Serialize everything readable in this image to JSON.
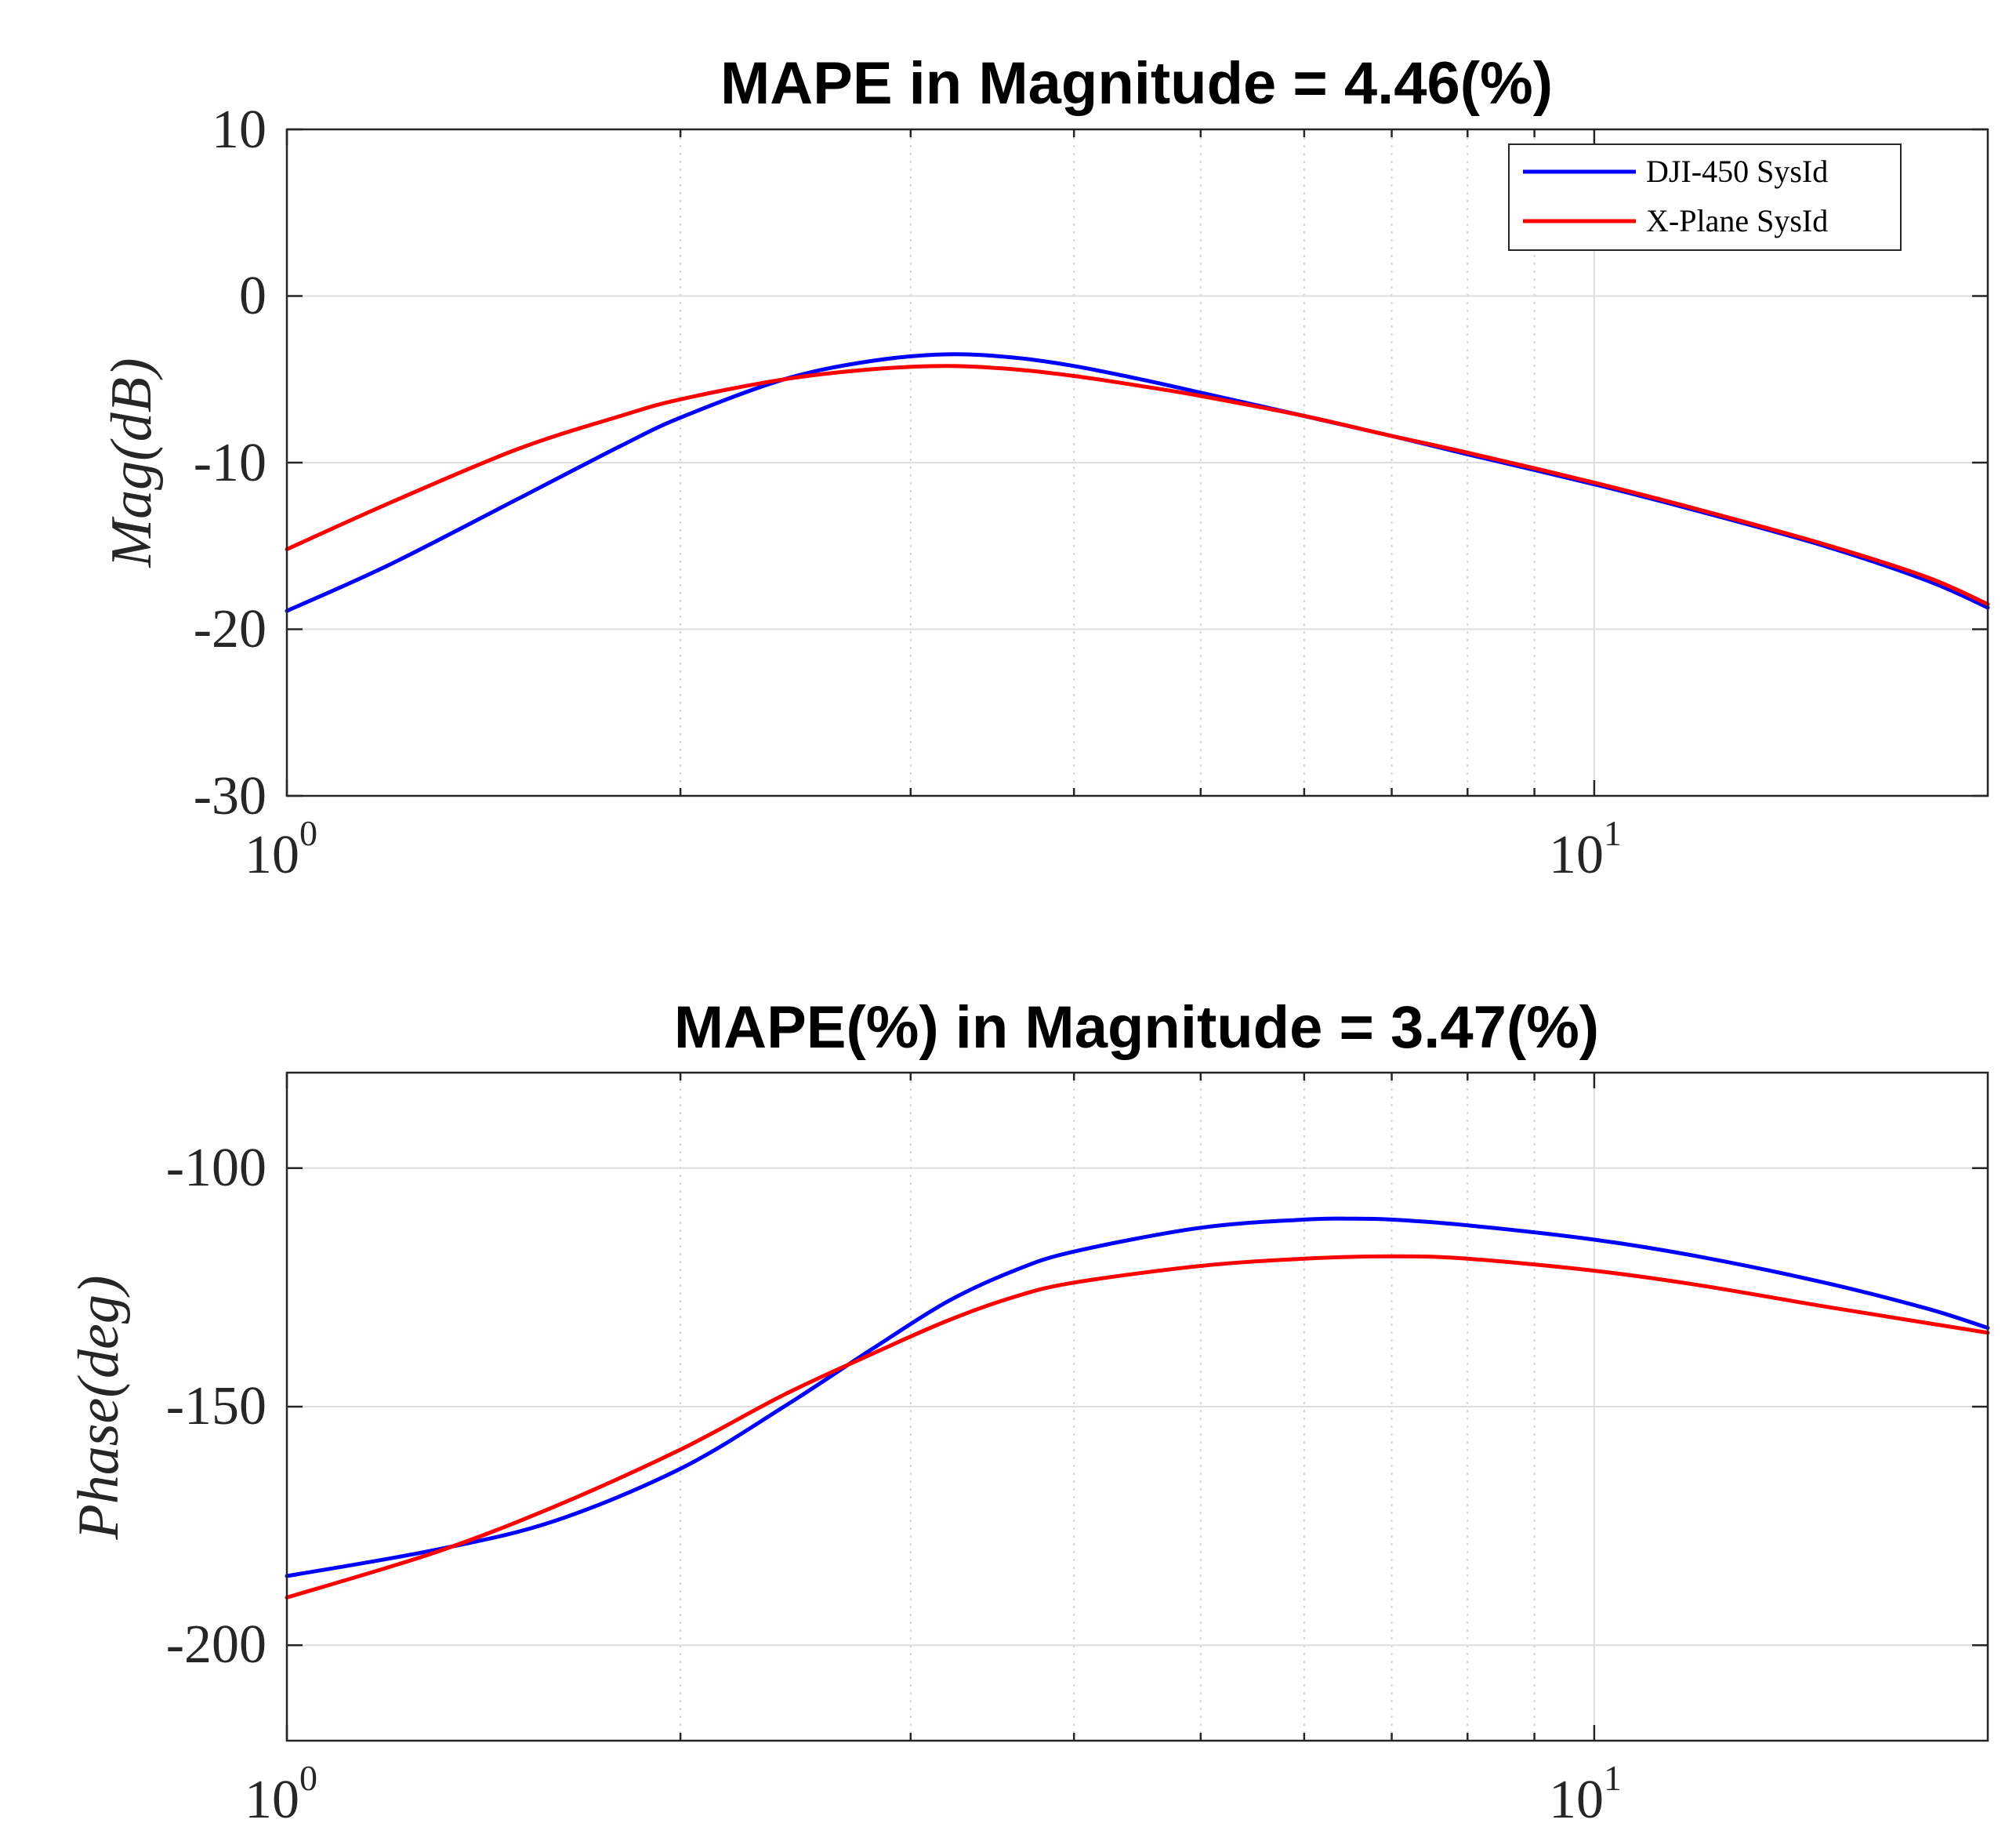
{
  "chart_data": [
    {
      "type": "line",
      "title": "MAPE in Magnitude = 4.46(%)",
      "xlabel": "",
      "ylabel": "Mag(dB)",
      "xscale": "log",
      "xlim": [
        1,
        20
      ],
      "ylim": [
        -30,
        10
      ],
      "yticks": [
        10,
        0,
        -10,
        -20,
        -30
      ],
      "ytick_labels": [
        "10",
        "0",
        "-10",
        "-20",
        "-30"
      ],
      "xticks": [
        1,
        10
      ],
      "xtick_labels": [
        {
          "base": "10",
          "exp": "0"
        },
        {
          "base": "10",
          "exp": "1"
        }
      ],
      "grid": true,
      "legend_position": "top-right",
      "series": [
        {
          "name": "DJI-450 SysId",
          "color": "#0000ff",
          "x": [
            1,
            1.2,
            1.5,
            1.8,
            2.0,
            2.4,
            2.8,
            3.2,
            3.6,
            4.0,
            4.5,
            5.0,
            6.0,
            7.0,
            8.0,
            10.0,
            12.0,
            15.0,
            18.0,
            20.0
          ],
          "y": [
            -18.9,
            -16.1,
            -12.2,
            -9.0,
            -7.3,
            -5.0,
            -3.9,
            -3.5,
            -3.7,
            -4.2,
            -5.0,
            -5.8,
            -7.2,
            -8.4,
            -9.5,
            -11.3,
            -12.9,
            -15.0,
            -17.1,
            -18.7
          ]
        },
        {
          "name": "X-Plane SysId",
          "color": "#ff0000",
          "x": [
            1,
            1.2,
            1.5,
            1.8,
            2.0,
            2.4,
            2.8,
            3.2,
            3.6,
            4.0,
            4.5,
            5.0,
            6.0,
            7.0,
            8.0,
            10.0,
            12.0,
            15.0,
            18.0,
            20.0
          ],
          "y": [
            -15.2,
            -12.4,
            -9.2,
            -7.2,
            -6.2,
            -5.0,
            -4.4,
            -4.2,
            -4.4,
            -4.8,
            -5.4,
            -6.0,
            -7.2,
            -8.4,
            -9.4,
            -11.2,
            -12.8,
            -14.9,
            -16.9,
            -18.5
          ]
        }
      ]
    },
    {
      "type": "line",
      "title": "MAPE(%) in Magnitude = 3.47(%)",
      "xlabel": "",
      "ylabel": "Phase(deg)",
      "xscale": "log",
      "xlim": [
        1,
        20
      ],
      "ylim": [
        -220,
        -80
      ],
      "yticks": [
        -100,
        -150,
        -200
      ],
      "ytick_labels": [
        "-100",
        "-150",
        "-200"
      ],
      "xticks": [
        1,
        10
      ],
      "xtick_labels": [
        {
          "base": "10",
          "exp": "0"
        },
        {
          "base": "10",
          "exp": "1"
        }
      ],
      "grid": true,
      "series": [
        {
          "name": "DJI-450 SysId",
          "color": "#0000ff",
          "x": [
            1,
            1.3,
            1.6,
            2.0,
            2.4,
            2.8,
            3.2,
            3.6,
            4.0,
            5.0,
            6.0,
            6.5,
            7.0,
            8.0,
            10.0,
            12.0,
            15.0,
            18.0,
            20.0
          ],
          "y": [
            -185.5,
            -180.0,
            -174.0,
            -163.0,
            -150.0,
            -138.0,
            -128.0,
            -121.5,
            -117.5,
            -112.5,
            -110.8,
            -110.6,
            -110.8,
            -112.0,
            -115.0,
            -118.5,
            -124.0,
            -129.5,
            -133.5
          ]
        },
        {
          "name": "X-Plane SysId",
          "color": "#ff0000",
          "x": [
            1,
            1.3,
            1.6,
            2.0,
            2.4,
            2.8,
            3.2,
            3.6,
            4.0,
            5.0,
            6.0,
            7.0,
            8.0,
            10.0,
            12.0,
            15.0,
            18.0,
            20.0
          ],
          "y": [
            -190.0,
            -180.5,
            -171.0,
            -159.0,
            -147.5,
            -139.0,
            -132.0,
            -127.0,
            -124.0,
            -120.5,
            -119.0,
            -118.5,
            -119.0,
            -121.5,
            -124.5,
            -129.0,
            -132.5,
            -134.5
          ]
        }
      ]
    }
  ]
}
